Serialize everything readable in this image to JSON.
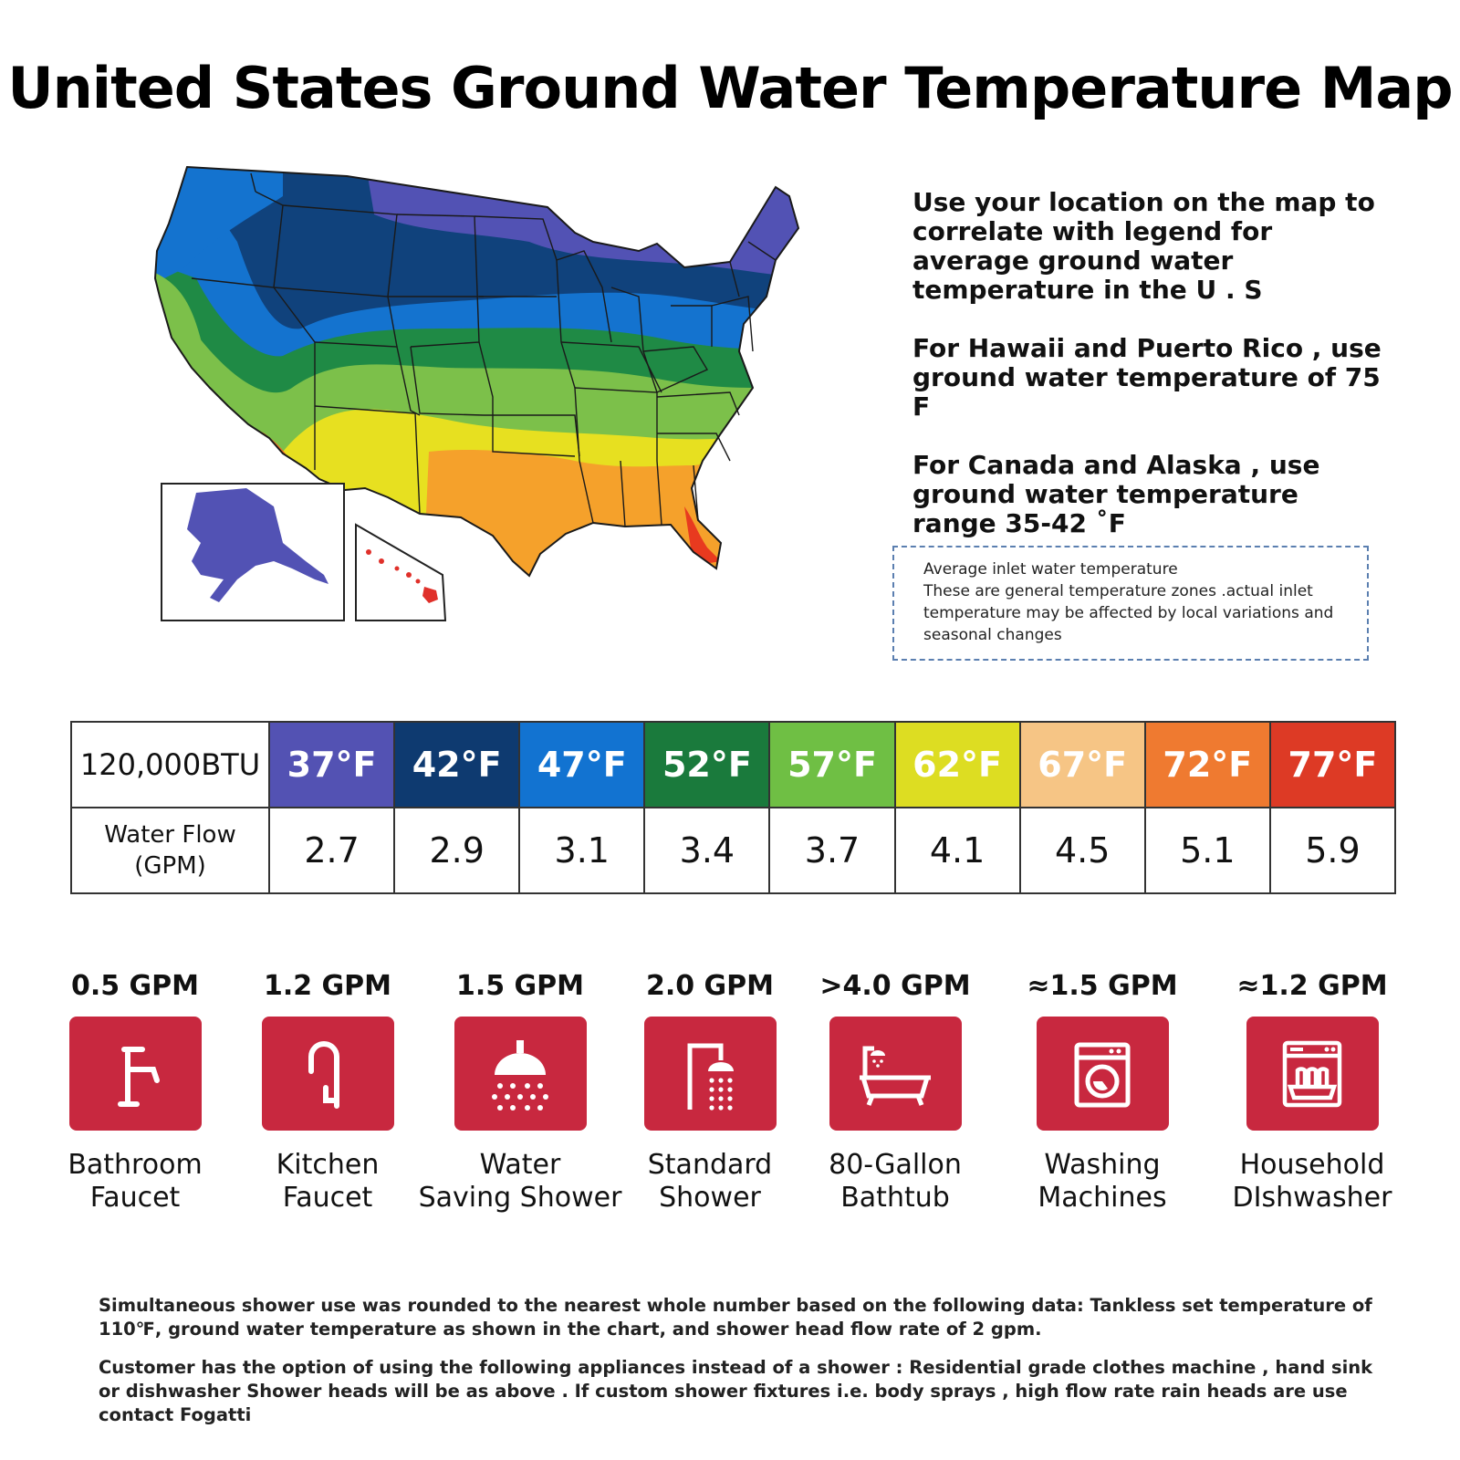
{
  "title": "United States Ground Water Temperature Map",
  "info": {
    "p1": "Use your location on the map to correlate with legend for average ground water temperature in the U . S",
    "p2": "For Hawaii and Puerto Rico , use ground water temperature of 75 F",
    "p3": "For Canada and Alaska , use ground water temperature range 35-42 ˚F"
  },
  "note": {
    "line1": "Average inlet water temperature",
    "line2": "These are general temperature zones .actual inlet temperature may be affected by local variations and seasonal changes"
  },
  "table": {
    "header": "120,000BTU",
    "row_label_line1": "Water Flow",
    "row_label_line2": "(GPM)",
    "columns": [
      {
        "temp": "37°F",
        "color": "#5352b3",
        "flow": "2.7"
      },
      {
        "temp": "42°F",
        "color": "#0e3a70",
        "flow": "2.9"
      },
      {
        "temp": "47°F",
        "color": "#1273d1",
        "flow": "3.1"
      },
      {
        "temp": "52°F",
        "color": "#1a7a3c",
        "flow": "3.4"
      },
      {
        "temp": "57°F",
        "color": "#6fbf44",
        "flow": "3.7"
      },
      {
        "temp": "62°F",
        "color": "#dddd22",
        "flow": "4.1"
      },
      {
        "temp": "67°F",
        "color": "#f6c585",
        "flow": "4.5"
      },
      {
        "temp": "72°F",
        "color": "#ef7a30",
        "flow": "5.1"
      },
      {
        "temp": "77°F",
        "color": "#dd3a25",
        "flow": "5.9"
      }
    ]
  },
  "fixtures": [
    {
      "gpm": "0.5 GPM",
      "line1": "Bathroom",
      "line2": "Faucet",
      "icon": "bathroom-faucet-icon"
    },
    {
      "gpm": "1.2 GPM",
      "line1": "Kitchen",
      "line2": "Faucet",
      "icon": "kitchen-faucet-icon"
    },
    {
      "gpm": "1.5 GPM",
      "line1": "Water",
      "line2": "Saving Shower",
      "icon": "shower-head-icon"
    },
    {
      "gpm": "2.0 GPM",
      "line1": "Standard",
      "line2": "Shower",
      "icon": "standard-shower-icon"
    },
    {
      "gpm": ">4.0 GPM",
      "line1": "80-Gallon",
      "line2": "Bathtub",
      "icon": "bathtub-icon"
    },
    {
      "gpm": "≈1.5 GPM",
      "line1": "Washing",
      "line2": "Machines",
      "icon": "washing-machine-icon"
    },
    {
      "gpm": "≈1.2 GPM",
      "line1": "Household",
      "line2": "DIshwasher",
      "icon": "dishwasher-icon"
    }
  ],
  "footnotes": {
    "p1": "Simultaneous shower use was rounded to the nearest whole number based on the following data: Tankless set temperature of 110℉, ground water temperature as shown in the chart, and shower head flow rate of  2 gpm.",
    "p2": "Customer has the option of using the following appliances instead of a shower : Residential grade clothes machine , hand sink or dishwasher Shower heads will be as above . If custom shower fixtures i.e. body sprays , high flow rate rain heads are use contact Fogatti"
  },
  "colors": {
    "tile": "#c8283f"
  }
}
